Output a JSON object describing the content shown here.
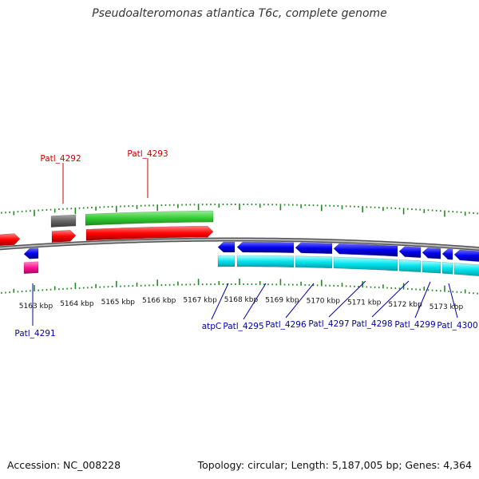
{
  "title": "Pseudoalteromonas atlantica T6c, complete genome",
  "accession": "Accession: NC_008228",
  "summary": "Topology: circular; Length: 5,187,005 bp; Genes: 4,364",
  "ruler_ticks": [
    "5163 kbp",
    "5164 kbp",
    "5165 kbp",
    "5166 kbp",
    "5167 kbp",
    "5168 kbp",
    "5169 kbp",
    "5170 kbp",
    "5171 kbp",
    "5172 kbp",
    "5173 kbp"
  ],
  "top_labels": [
    "Patl_4292",
    "Patl_4293"
  ],
  "bottom_labels": [
    "Patl_4291",
    "atpC",
    "Patl_4295",
    "Patl_4296",
    "Patl_4297",
    "Patl_4298",
    "Patl_4299",
    "Patl_4300"
  ],
  "colors": {
    "forward_cds": "#ff0000",
    "forward_gene": "#33cc33",
    "reverse_cds": "#0000ee",
    "reverse_gene": "#00e5ee",
    "pseudo_gene": "#666666",
    "trna": "#ff1493",
    "backbone": "#888888",
    "tick": "#228b22",
    "top_label": "#cc0000",
    "bottom_label": "#0000aa"
  }
}
